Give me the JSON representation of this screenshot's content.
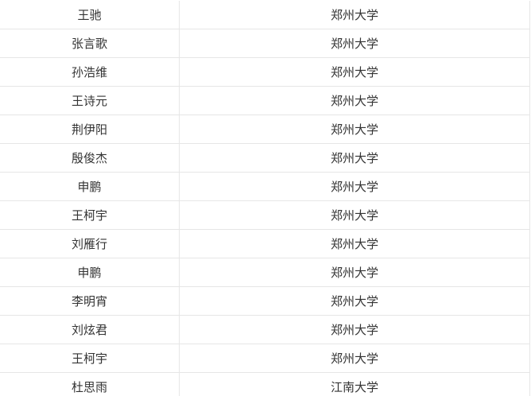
{
  "table": {
    "rows": [
      [
        "王驰",
        "郑州大学"
      ],
      [
        "张言歌",
        "郑州大学"
      ],
      [
        "孙浩维",
        "郑州大学"
      ],
      [
        "王诗元",
        "郑州大学"
      ],
      [
        "荆伊阳",
        "郑州大学"
      ],
      [
        "殷俊杰",
        "郑州大学"
      ],
      [
        "申鹏",
        "郑州大学"
      ],
      [
        "王柯宇",
        "郑州大学"
      ],
      [
        "刘雁行",
        "郑州大学"
      ],
      [
        "申鹏",
        "郑州大学"
      ],
      [
        "李明宵",
        "郑州大学"
      ],
      [
        "刘炫君",
        "郑州大学"
      ],
      [
        "王柯宇",
        "郑州大学"
      ],
      [
        "杜思雨",
        "江南大学"
      ]
    ]
  }
}
